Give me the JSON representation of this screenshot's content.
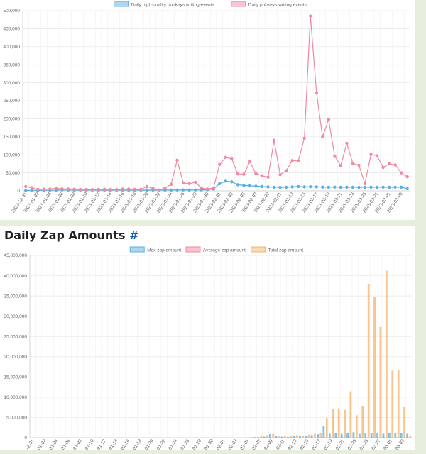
{
  "sections": {
    "zap_title": "Daily Zap Amounts",
    "zap_anchor": "#"
  },
  "colors": {
    "blue": "#5ab0e0",
    "pink": "#f08aa0",
    "orange": "#f5b36b"
  },
  "chart_data": [
    {
      "type": "line",
      "title": "",
      "legend": [
        "Daily high-quality pubkeys writing events",
        "Daily pubkeys writing events"
      ],
      "legend_position": "top",
      "grid": true,
      "ylim": [
        0,
        500000
      ],
      "yticks": [
        0,
        50000,
        100000,
        150000,
        200000,
        250000,
        300000,
        350000,
        400000,
        450000,
        500000
      ],
      "x": [
        "2022-12-31",
        "2023-01-01",
        "2023-01-02",
        "2023-01-03",
        "2023-01-04",
        "2023-01-05",
        "2023-01-06",
        "2023-01-07",
        "2023-01-08",
        "2023-01-09",
        "2023-01-10",
        "2023-01-11",
        "2023-01-12",
        "2023-01-13",
        "2023-01-14",
        "2023-01-15",
        "2023-01-16",
        "2023-01-17",
        "2023-01-18",
        "2023-01-19",
        "2023-01-20",
        "2023-01-21",
        "2023-01-22",
        "2023-01-23",
        "2023-01-24",
        "2023-01-25",
        "2023-01-26",
        "2023-01-27",
        "2023-01-28",
        "2023-01-29",
        "2023-01-30",
        "2023-01-31",
        "2023-02-01",
        "2023-02-02",
        "2023-02-03",
        "2023-02-04",
        "2023-02-05",
        "2023-02-06",
        "2023-02-07",
        "2023-02-08",
        "2023-02-09",
        "2023-02-10",
        "2023-02-11",
        "2023-02-12",
        "2023-02-13",
        "2023-02-14",
        "2023-02-15",
        "2023-02-16",
        "2023-02-17",
        "2023-02-18",
        "2023-02-19",
        "2023-02-20",
        "2023-02-21",
        "2023-02-22",
        "2023-02-23",
        "2023-02-24",
        "2023-02-25",
        "2023-02-26",
        "2023-02-27",
        "2023-02-28",
        "2023-03-01",
        "2023-03-02",
        "2023-03-03",
        "2023-03-04"
      ],
      "series": [
        {
          "name": "Daily high-quality pubkeys writing events",
          "color": "blue",
          "values": [
            1000,
            1200,
            1300,
            1500,
            1800,
            2000,
            2500,
            2400,
            2200,
            2300,
            2200,
            2100,
            2200,
            2300,
            2200,
            2100,
            2300,
            2200,
            2100,
            2000,
            2200,
            2100,
            2000,
            2100,
            2300,
            2400,
            2500,
            2400,
            2500,
            2600,
            3000,
            5000,
            20000,
            27000,
            25000,
            17000,
            15000,
            14000,
            13000,
            12000,
            11000,
            10000,
            9500,
            10000,
            11000,
            12000,
            11000,
            11500,
            11000,
            10500,
            10000,
            10500,
            10000,
            10200,
            10000,
            9800,
            10000,
            10200,
            10000,
            10300,
            10000,
            10100,
            10200,
            6000
          ]
        },
        {
          "name": "Daily pubkeys writing events",
          "color": "pink",
          "values": [
            12000,
            9000,
            4000,
            4500,
            5000,
            7000,
            5500,
            5000,
            4500,
            4000,
            4000,
            3500,
            4000,
            4500,
            4000,
            3500,
            5000,
            5000,
            4000,
            4000,
            12000,
            7000,
            2000,
            8000,
            18000,
            85000,
            22000,
            20000,
            24000,
            8000,
            5000,
            8000,
            73000,
            93000,
            89000,
            47000,
            46000,
            81000,
            48000,
            42000,
            38000,
            140000,
            45000,
            56000,
            84000,
            83000,
            146000,
            485000,
            272000,
            150000,
            198000,
            96000,
            70000,
            132000,
            76000,
            71000,
            20000,
            101000,
            97000,
            65000,
            75000,
            72000,
            50000,
            39000
          ]
        }
      ]
    },
    {
      "type": "bar",
      "title": "Daily Zap Amounts",
      "legend": [
        "Max zap amount",
        "Average zap amount",
        "Total zap amount"
      ],
      "legend_position": "top",
      "grid": true,
      "ylim": [
        0,
        45000000
      ],
      "yticks": [
        0,
        5000000,
        10000000,
        15000000,
        20000000,
        25000000,
        30000000,
        35000000,
        40000000,
        45000000
      ],
      "x": [
        "2022-12-31",
        "2023-01-01",
        "2023-01-02",
        "2023-01-03",
        "2023-01-04",
        "2023-01-05",
        "2023-01-06",
        "2023-01-07",
        "2023-01-08",
        "2023-01-09",
        "2023-01-10",
        "2023-01-11",
        "2023-01-12",
        "2023-01-13",
        "2023-01-14",
        "2023-01-15",
        "2023-01-16",
        "2023-01-17",
        "2023-01-18",
        "2023-01-19",
        "2023-01-20",
        "2023-01-21",
        "2023-01-22",
        "2023-01-23",
        "2023-01-24",
        "2023-01-25",
        "2023-01-26",
        "2023-01-27",
        "2023-01-28",
        "2023-01-29",
        "2023-01-30",
        "2023-01-31",
        "2023-02-01",
        "2023-02-02",
        "2023-02-03",
        "2023-02-04",
        "2023-02-05",
        "2023-02-06",
        "2023-02-07",
        "2023-02-08",
        "2023-02-09",
        "2023-02-10",
        "2023-02-11",
        "2023-02-12",
        "2023-02-13",
        "2023-02-14",
        "2023-02-15",
        "2023-02-16",
        "2023-02-17",
        "2023-02-18",
        "2023-02-19",
        "2023-02-20",
        "2023-02-21",
        "2023-02-22",
        "2023-02-23",
        "2023-02-24",
        "2023-02-25",
        "2023-02-26",
        "2023-02-27",
        "2023-02-28",
        "2023-03-01",
        "2023-03-02",
        "2023-03-03",
        "2023-03-04"
      ],
      "series": [
        {
          "name": "Max zap amount",
          "color": "blue",
          "values": [
            0,
            0,
            0,
            0,
            0,
            0,
            0,
            0,
            0,
            0,
            0,
            0,
            0,
            0,
            0,
            0,
            0,
            0,
            0,
            0,
            0,
            0,
            0,
            0,
            0,
            0,
            0,
            0,
            0,
            0,
            0,
            0,
            0,
            0,
            0,
            0,
            0,
            50000,
            100000,
            200000,
            800000,
            300000,
            200000,
            150000,
            300000,
            500000,
            400000,
            600000,
            800000,
            2800000,
            900000,
            1000000,
            900000,
            1200000,
            1300000,
            900000,
            1000000,
            1100000,
            1000000,
            900000,
            1100000,
            1200000,
            1000000,
            900000
          ]
        },
        {
          "name": "Average zap amount",
          "color": "pink",
          "values": [
            0,
            0,
            0,
            0,
            0,
            0,
            0,
            0,
            0,
            0,
            0,
            0,
            0,
            0,
            0,
            0,
            0,
            0,
            0,
            0,
            0,
            0,
            0,
            0,
            0,
            0,
            0,
            0,
            0,
            0,
            0,
            0,
            0,
            0,
            0,
            0,
            0,
            5000,
            8000,
            10000,
            12000,
            10000,
            9000,
            8000,
            9000,
            10000,
            9000,
            9500,
            10000,
            20000,
            12000,
            11000,
            10000,
            10500,
            11000,
            10000,
            10500,
            11000,
            10000,
            9800,
            10200,
            10500,
            10000,
            9800
          ]
        },
        {
          "name": "Total zap amount",
          "color": "orange",
          "values": [
            0,
            0,
            0,
            0,
            0,
            0,
            0,
            0,
            0,
            0,
            0,
            0,
            0,
            0,
            0,
            0,
            0,
            0,
            0,
            0,
            0,
            0,
            0,
            0,
            0,
            0,
            0,
            0,
            0,
            0,
            0,
            0,
            0,
            0,
            0,
            0,
            0,
            150000,
            300000,
            600000,
            900000,
            400000,
            300000,
            400000,
            600000,
            500000,
            700000,
            900000,
            1200000,
            4800000,
            7000000,
            7200000,
            6800000,
            11400000,
            5500000,
            7700000,
            37800000,
            34600000,
            27300000,
            41200000,
            16500000,
            16700000,
            7500000,
            500000
          ]
        }
      ]
    }
  ]
}
